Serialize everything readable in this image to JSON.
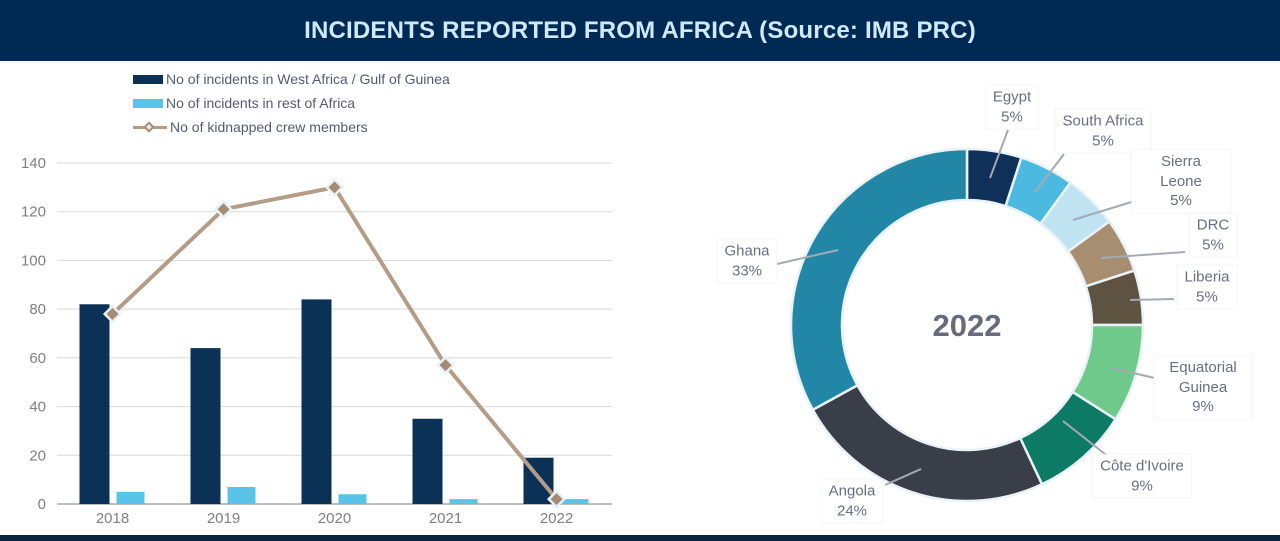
{
  "header": {
    "title": "INCIDENTS REPORTED FROM AFRICA (Source: IMB PRC)"
  },
  "colors": {
    "header_bg": "#002a54",
    "header_text": "#cfe9f6",
    "footer_bg": "#0d2240",
    "axis_text": "#7f7f7f",
    "grid_line": "#d8d8d8",
    "axis_line": "#a8a8a8",
    "legend_text": "#555a70",
    "callout_text": "#6a6e80",
    "leader_line": "#a5a9b5",
    "slice_border": "#e9f2f6",
    "center_label_color": "#676b7e",
    "marker_fill": "#a58b72",
    "marker_stroke": "#e6f2f7"
  },
  "chart_data": [
    {
      "type": "bar",
      "subtype": "combo-bar-line",
      "categories": [
        "2018",
        "2019",
        "2020",
        "2021",
        "2022"
      ],
      "series": [
        {
          "name": "No of incidents in West Africa / Gulf of Guinea",
          "kind": "bar",
          "color": "#0b3156",
          "values": [
            82,
            64,
            84,
            35,
            19
          ]
        },
        {
          "name": "No of incidents in rest of Africa",
          "kind": "bar",
          "color": "#58c5e8",
          "values": [
            5,
            7,
            4,
            2,
            2
          ]
        },
        {
          "name": "No of kidnapped crew members",
          "kind": "line",
          "color": "#b49c86",
          "marker": "diamond",
          "values": [
            78,
            121,
            130,
            57,
            2
          ]
        }
      ],
      "ylim": [
        0,
        140
      ],
      "ytick_step": 20,
      "yticks": [
        0,
        20,
        40,
        60,
        80,
        100,
        120,
        140
      ],
      "grid": true,
      "legend_position": "top-left"
    },
    {
      "type": "pie",
      "donut": true,
      "center_label": "2022",
      "slices": [
        {
          "label": "Egypt",
          "pct": 5,
          "color": "#0f3059"
        },
        {
          "label": "South Africa",
          "pct": 5,
          "color": "#4cb9e0"
        },
        {
          "label": "Sierra Leone",
          "pct": 5,
          "color": "#c0e3f2"
        },
        {
          "label": "DRC",
          "pct": 5,
          "color": "#a78e71"
        },
        {
          "label": "Liberia",
          "pct": 5,
          "color": "#5d5340"
        },
        {
          "label": "Equatorial Guinea",
          "pct": 9,
          "color": "#6fc98b"
        },
        {
          "label": "Côte d'Ivoire",
          "pct": 9,
          "color": "#0d7a66"
        },
        {
          "label": "Angola",
          "pct": 24,
          "color": "#3a3e49"
        },
        {
          "label": "Ghana",
          "pct": 33,
          "color": "#2287a7"
        }
      ]
    }
  ]
}
